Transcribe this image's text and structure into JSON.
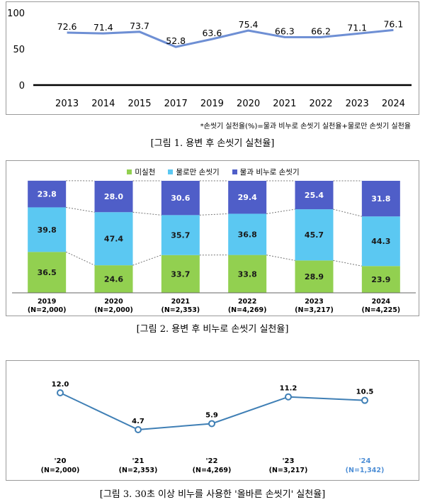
{
  "chart_data": [
    {
      "type": "line",
      "categories": [
        "2013",
        "2014",
        "2015",
        "2017",
        "2019",
        "2020",
        "2021",
        "2022",
        "2023",
        "2024"
      ],
      "series": [
        {
          "values": [
            72.6,
            71.4,
            73.7,
            52.8,
            63.6,
            75.4,
            66.3,
            66.2,
            71.1,
            76.1
          ]
        }
      ],
      "ylim": [
        0,
        100
      ],
      "yticks": [
        "100",
        "50",
        "0"
      ],
      "color": "#6e8fd4"
    },
    {
      "type": "bar",
      "stacked": true,
      "categories": [
        "2019",
        "2020",
        "2021",
        "2022",
        "2023",
        "2024"
      ],
      "sublabels": [
        "(N=2,000)",
        "(N=2,000)",
        "(N=2,353)",
        "(N=4,269)",
        "(N=3,217)",
        "(N=4,225)"
      ],
      "series": [
        {
          "name": "미실천",
          "values": [
            36.5,
            24.6,
            33.7,
            33.8,
            28.9,
            23.9
          ],
          "color": "#92d050"
        },
        {
          "name": "물로만 손씻기",
          "values": [
            39.8,
            47.4,
            35.7,
            36.8,
            45.7,
            44.3
          ],
          "color": "#5bc8f2"
        },
        {
          "name": "물과 비누로 손씻기",
          "values": [
            23.8,
            28.0,
            30.6,
            29.4,
            25.4,
            31.8
          ],
          "color": "#4f5ec8"
        }
      ],
      "legend": "top"
    },
    {
      "type": "line",
      "categories": [
        "'20",
        "'21",
        "'22",
        "'23",
        "'24"
      ],
      "sublabels": [
        "(N=2,000)",
        "(N=2,353)",
        "(N=4,269)",
        "(N=3,217)",
        "(N=1,342)"
      ],
      "series": [
        {
          "values": [
            12.0,
            4.7,
            5.9,
            11.2,
            10.5
          ]
        }
      ],
      "highlight_color": "#4f8fd6",
      "color": "#3f7fb5"
    }
  ],
  "footnote": "*손씻기 실천율(%)=물과 비누로 손씻기 실천율+물로만 손씻기 실천율",
  "captions": {
    "fig1": "[그림 1. 용변 후 손씻기 실천율]",
    "fig2": "[그림 2. 용변 후 비누로 손씻기 실천율]",
    "fig3": "[그림 3. 30초 이상 비누를 사용한 '올바른 손씻기' 실천율]"
  }
}
